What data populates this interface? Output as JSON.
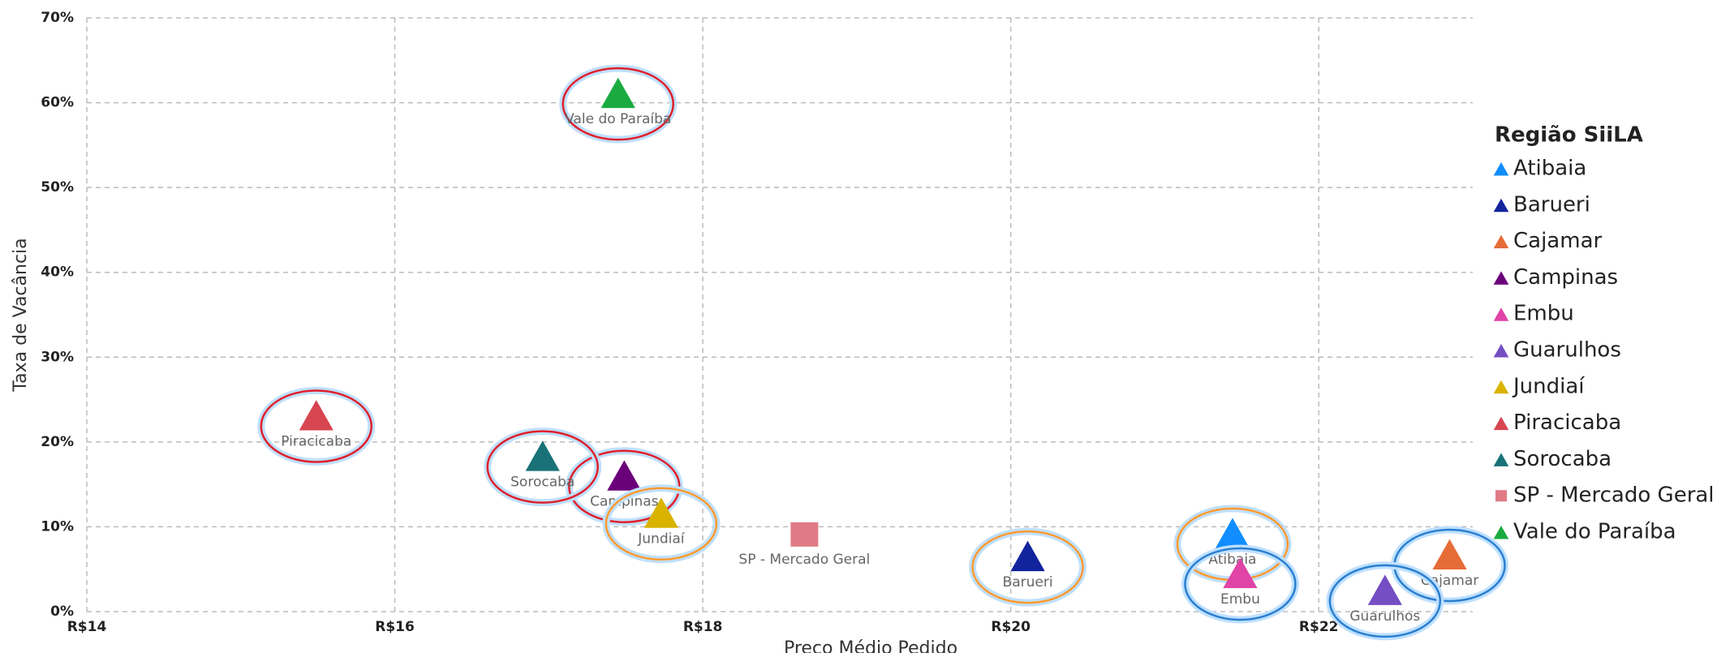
{
  "chart_data": {
    "type": "scatter",
    "x_label": "Preço Médio Pedido",
    "y_label": "Taxa de Vacância",
    "legend_title": "Região SiiLA",
    "legend": "right",
    "grid": true,
    "xlim": [
      14,
      23
    ],
    "ylim": [
      0,
      70
    ],
    "xticks": [
      {
        "value": 14,
        "label": "R$14"
      },
      {
        "value": 16,
        "label": "R$16"
      },
      {
        "value": 18,
        "label": "R$18"
      },
      {
        "value": 20,
        "label": "R$20"
      },
      {
        "value": 22,
        "label": "R$22"
      }
    ],
    "yticks": [
      {
        "value": 0,
        "label": "0%"
      },
      {
        "value": 10,
        "label": "10%"
      },
      {
        "value": 20,
        "label": "20%"
      },
      {
        "value": 30,
        "label": "30%"
      },
      {
        "value": 40,
        "label": "40%"
      },
      {
        "value": 50,
        "label": "50%"
      },
      {
        "value": 60,
        "label": "60%"
      },
      {
        "value": 70,
        "label": "70%"
      }
    ],
    "series": [
      {
        "name": "Atibaia",
        "color": "#118dff",
        "marker": "triangle",
        "circle_color": "orange",
        "x": [
          21.44
        ],
        "values": [
          9.1
        ]
      },
      {
        "name": "Barueri",
        "color": "#12239e",
        "marker": "triangle",
        "circle_color": "orange",
        "x": [
          20.11
        ],
        "values": [
          6.4
        ]
      },
      {
        "name": "Cajamar",
        "color": "#e66c37",
        "marker": "triangle",
        "circle_color": "blue",
        "x": [
          22.85
        ],
        "values": [
          6.6
        ]
      },
      {
        "name": "Campinas",
        "color": "#6b007b",
        "marker": "triangle",
        "circle_color": "red",
        "x": [
          17.49
        ],
        "values": [
          15.9
        ]
      },
      {
        "name": "Embu",
        "color": "#e044a7",
        "marker": "triangle",
        "circle_color": "blue",
        "x": [
          21.49
        ],
        "values": [
          4.4
        ]
      },
      {
        "name": "Guarulhos",
        "color": "#744ec2",
        "marker": "triangle",
        "circle_color": "blue",
        "x": [
          22.43
        ],
        "values": [
          2.4
        ]
      },
      {
        "name": "Jundiaí",
        "color": "#d9b300",
        "marker": "triangle",
        "circle_color": "orange",
        "x": [
          17.73
        ],
        "values": [
          11.5
        ]
      },
      {
        "name": "Piracicaba",
        "color": "#d64550",
        "marker": "triangle",
        "circle_color": "red",
        "x": [
          15.49
        ],
        "values": [
          23.0
        ]
      },
      {
        "name": "Sorocaba",
        "color": "#197278",
        "marker": "triangle",
        "circle_color": "red",
        "x": [
          16.96
        ],
        "values": [
          18.2
        ]
      },
      {
        "name": "SP - Mercado Geral",
        "color": "#e07b85",
        "marker": "square",
        "x": [
          18.66
        ],
        "values": [
          9.1
        ]
      },
      {
        "name": "Vale do Paraíba",
        "color": "#1aab40",
        "marker": "triangle",
        "circle_color": "red",
        "x": [
          17.45
        ],
        "values": [
          61.0
        ]
      }
    ]
  }
}
